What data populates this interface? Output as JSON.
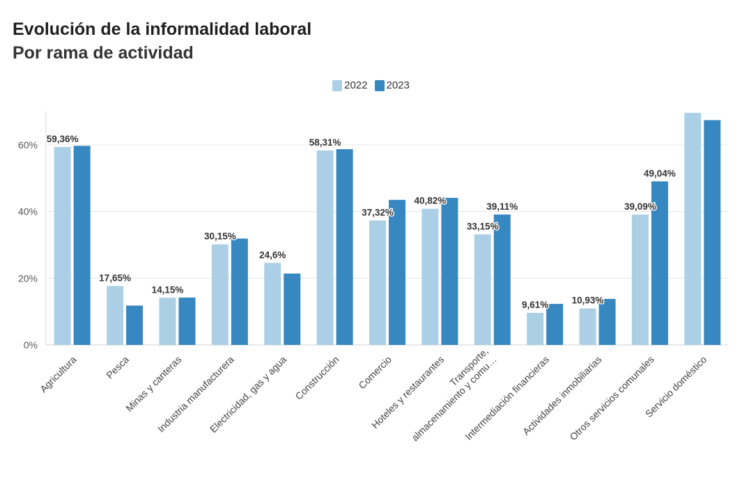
{
  "chart_data": {
    "type": "bar",
    "title": "Evolución de la informalidad laboral",
    "subtitle": "Por rama de actividad",
    "categories": [
      "Agricultura",
      "Pesca",
      "Minas y canteras",
      "Industria manufacturera",
      "Electricidad, gas y agua",
      "Construcción",
      "Comercio",
      "Hoteles y restaurantes",
      [
        "Transporte,",
        "almacenamiento y comu…"
      ],
      "Intermediación financieras",
      "Actividades inmobiliarias",
      "Otros servicios comunales",
      "Servicio doméstico"
    ],
    "series": [
      {
        "name": "2022",
        "color": "#abd0e6",
        "values": [
          59.36,
          17.65,
          14.15,
          30.15,
          24.6,
          58.31,
          37.32,
          40.82,
          33.15,
          9.61,
          10.93,
          39.09,
          69.6
        ],
        "labels": [
          "59,36%",
          "17,65%",
          "14,15%",
          "30,15%",
          "24,6%",
          "58,31%",
          "37,32%",
          "40,82%",
          "33,15%",
          "9,61%",
          "10,93%",
          "39,09%",
          ""
        ]
      },
      {
        "name": "2023",
        "color": "#3787c0",
        "values": [
          59.7,
          11.8,
          14.2,
          31.9,
          21.4,
          58.7,
          43.5,
          44.1,
          39.11,
          12.3,
          13.8,
          49.04,
          67.4
        ],
        "labels": [
          "",
          "",
          "",
          "",
          "",
          "",
          "",
          "",
          "39,11%",
          "",
          "",
          "49,04%",
          ""
        ]
      }
    ],
    "y_ticks": [
      0,
      20,
      40,
      60
    ],
    "y_tick_labels": [
      "0%",
      "20%",
      "40%",
      "60%"
    ],
    "ylim": [
      0,
      70
    ],
    "grid": true,
    "legend_position": "top-center"
  }
}
